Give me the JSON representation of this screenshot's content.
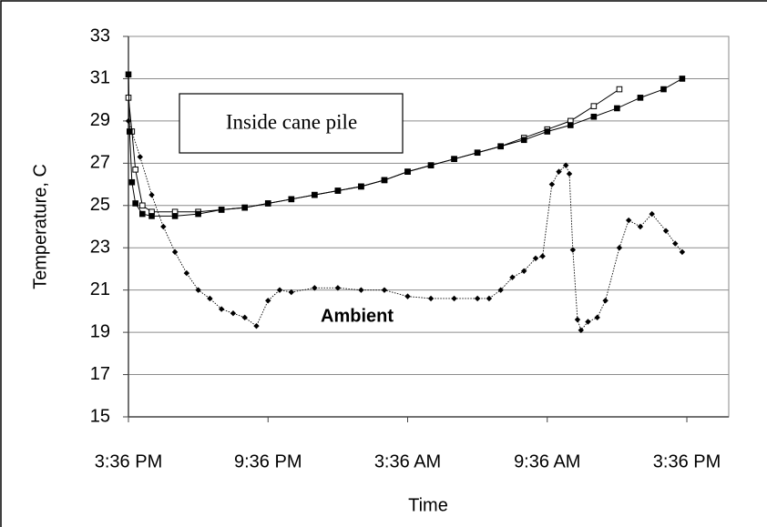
{
  "chart_data": {
    "type": "scatter",
    "y_label": "Temperature, C",
    "x_label": "Time",
    "annotations": [
      "Inside cane pile",
      "Ambient"
    ],
    "xlim": [
      0,
      25.8
    ],
    "ylim": [
      15,
      33
    ],
    "xticks": [
      {
        "value": 0,
        "label": "3:36 PM"
      },
      {
        "value": 6,
        "label": "9:36 PM"
      },
      {
        "value": 12,
        "label": "3:36 AM"
      },
      {
        "value": 18,
        "label": "9:36 AM"
      },
      {
        "value": 24,
        "label": "3:36 PM"
      }
    ],
    "yticks": [
      15,
      17,
      19,
      21,
      23,
      25,
      27,
      29,
      31,
      33
    ],
    "grid": true,
    "series": [
      {
        "marker": "open-square",
        "line": "solid",
        "color": "#000000",
        "x": [
          0,
          0.15,
          0.3,
          0.6,
          1,
          2,
          3,
          4,
          5,
          6,
          7,
          8,
          9,
          10,
          11,
          12,
          13,
          14,
          15,
          16,
          17,
          18,
          19,
          20,
          21.1
        ],
        "values": [
          30.1,
          28.5,
          26.7,
          25.0,
          24.7,
          24.7,
          24.7,
          24.8,
          24.9,
          25.1,
          25.3,
          25.5,
          25.7,
          25.9,
          26.2,
          26.6,
          26.9,
          27.2,
          27.5,
          27.8,
          28.2,
          28.6,
          29.0,
          29.7,
          30.5
        ]
      },
      {
        "marker": "filled-square",
        "line": "solid",
        "color": "#000000",
        "x": [
          0,
          0.05,
          0.15,
          0.3,
          0.6,
          1,
          2,
          3,
          4,
          5,
          6,
          7,
          8,
          9,
          10,
          11,
          12,
          13,
          14,
          15,
          16,
          17,
          18,
          19,
          20,
          21,
          22,
          23,
          23.8
        ],
        "values": [
          31.2,
          28.5,
          26.1,
          25.1,
          24.6,
          24.5,
          24.5,
          24.6,
          24.8,
          24.9,
          25.1,
          25.3,
          25.5,
          25.7,
          25.9,
          26.2,
          26.6,
          26.9,
          27.2,
          27.5,
          27.8,
          28.1,
          28.5,
          28.8,
          29.2,
          29.6,
          30.1,
          30.5,
          31.0
        ]
      },
      {
        "marker": "diamond",
        "line": "dotted",
        "color": "#000000",
        "x": [
          0,
          0.5,
          1,
          1.5,
          2,
          2.5,
          3,
          3.5,
          4,
          4.5,
          5,
          5.5,
          6,
          6.5,
          7,
          8,
          9,
          10,
          11,
          12,
          13,
          14,
          15,
          15.5,
          16,
          16.5,
          17,
          17.5,
          17.8,
          18.2,
          18.5,
          18.8,
          18.95,
          19.1,
          19.3,
          19.45,
          19.75,
          20.15,
          20.5,
          21.1,
          21.5,
          22,
          22.5,
          23.1,
          23.5,
          23.8
        ],
        "values": [
          29.0,
          27.3,
          25.5,
          24.0,
          22.8,
          21.8,
          21.0,
          20.6,
          20.1,
          19.9,
          19.7,
          19.3,
          20.5,
          21.0,
          20.9,
          21.1,
          21.1,
          21.0,
          21.0,
          20.7,
          20.6,
          20.6,
          20.6,
          20.6,
          21.0,
          21.6,
          21.9,
          22.5,
          22.6,
          26.0,
          26.6,
          26.9,
          26.5,
          22.9,
          19.6,
          19.1,
          19.5,
          19.7,
          20.5,
          23.0,
          24.3,
          24.0,
          24.6,
          23.8,
          23.2,
          22.8
        ]
      }
    ]
  }
}
